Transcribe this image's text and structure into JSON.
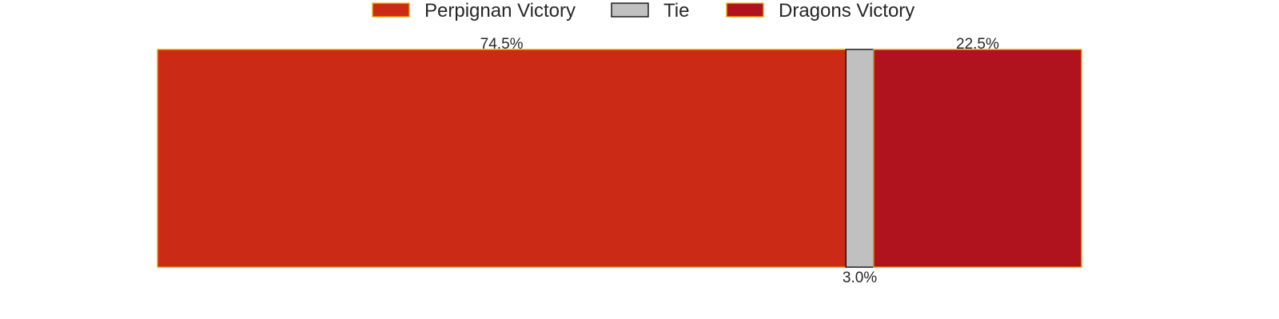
{
  "chart_data": {
    "type": "bar",
    "orientation": "horizontal",
    "stacked": true,
    "grid": false,
    "legend_placement": "top-center",
    "categories": [
      ""
    ],
    "series": [
      {
        "name": "Perpignan Victory",
        "values": [
          74.5
        ],
        "label": "74.5%",
        "color": "#cb2a16",
        "edge_color": "#f2a900",
        "label_position": "top"
      },
      {
        "name": "Tie",
        "values": [
          3.0
        ],
        "label": "3.0%",
        "color": "#c0c0c0",
        "edge_color": "#000000",
        "label_position": "bottom"
      },
      {
        "name": "Dragons Victory",
        "values": [
          22.5
        ],
        "label": "22.5%",
        "color": "#b0121e",
        "edge_color": "#f2a900",
        "label_position": "top"
      }
    ],
    "xlim": [
      0,
      100
    ]
  }
}
